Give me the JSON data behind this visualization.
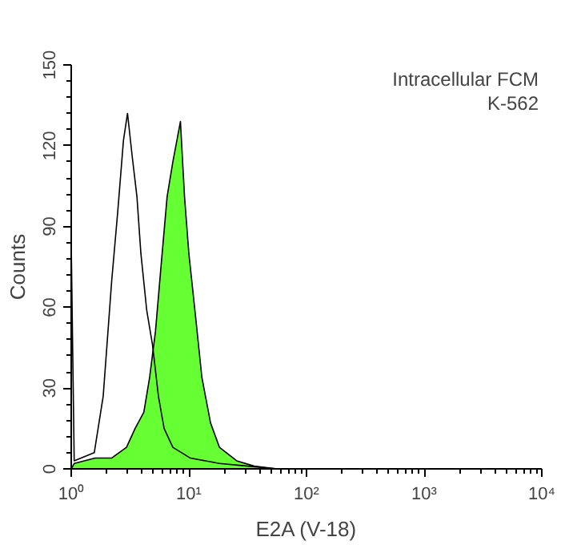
{
  "chart_data": {
    "type": "area",
    "xlabel": "E2A (V-18)",
    "ylabel": "Counts",
    "annotations": [
      "Intracellular FCM",
      "K-562"
    ],
    "log": "x",
    "xlim": [
      1,
      10000
    ],
    "ylim": [
      0,
      150
    ],
    "xticks": [
      {
        "value": 1,
        "label": "10⁰"
      },
      {
        "value": 10,
        "label": "10¹"
      },
      {
        "value": 100,
        "label": "10²"
      },
      {
        "value": 1000,
        "label": "10³"
      },
      {
        "value": 10000,
        "label": "10⁴"
      }
    ],
    "yticks": [
      0,
      30,
      60,
      90,
      120,
      150
    ],
    "grid": false,
    "legend": false,
    "series": [
      {
        "color": "#66ff33",
        "x": [
          1.0,
          1.06,
          1.6,
          2.2,
          2.95,
          3.49,
          4.14,
          4.64,
          5.2,
          5.82,
          6.53,
          7.31,
          8.48,
          9.19,
          10.0,
          11.5,
          12.9,
          15.3,
          18.2,
          25.5,
          36,
          56
        ],
        "values": [
          0,
          2,
          4,
          4,
          8,
          15,
          21,
          34,
          51,
          76,
          101,
          114,
          129,
          101,
          80,
          55,
          34,
          17,
          8,
          3,
          1,
          0
        ]
      },
      {
        "type": "line",
        "color": "#000000",
        "x": [
          1.0,
          1.0,
          1.06,
          1.57,
          1.87,
          2.21,
          2.48,
          2.78,
          3.01,
          3.3,
          3.62,
          3.91,
          4.38,
          4.91,
          5.51,
          6.16,
          7.31,
          10.3,
          18.2,
          32.1,
          56
        ],
        "values": [
          0,
          84,
          3,
          6,
          27,
          70,
          95,
          122,
          132,
          116,
          101,
          80,
          59,
          46,
          27,
          15,
          8,
          4,
          2,
          1,
          0
        ]
      }
    ]
  }
}
